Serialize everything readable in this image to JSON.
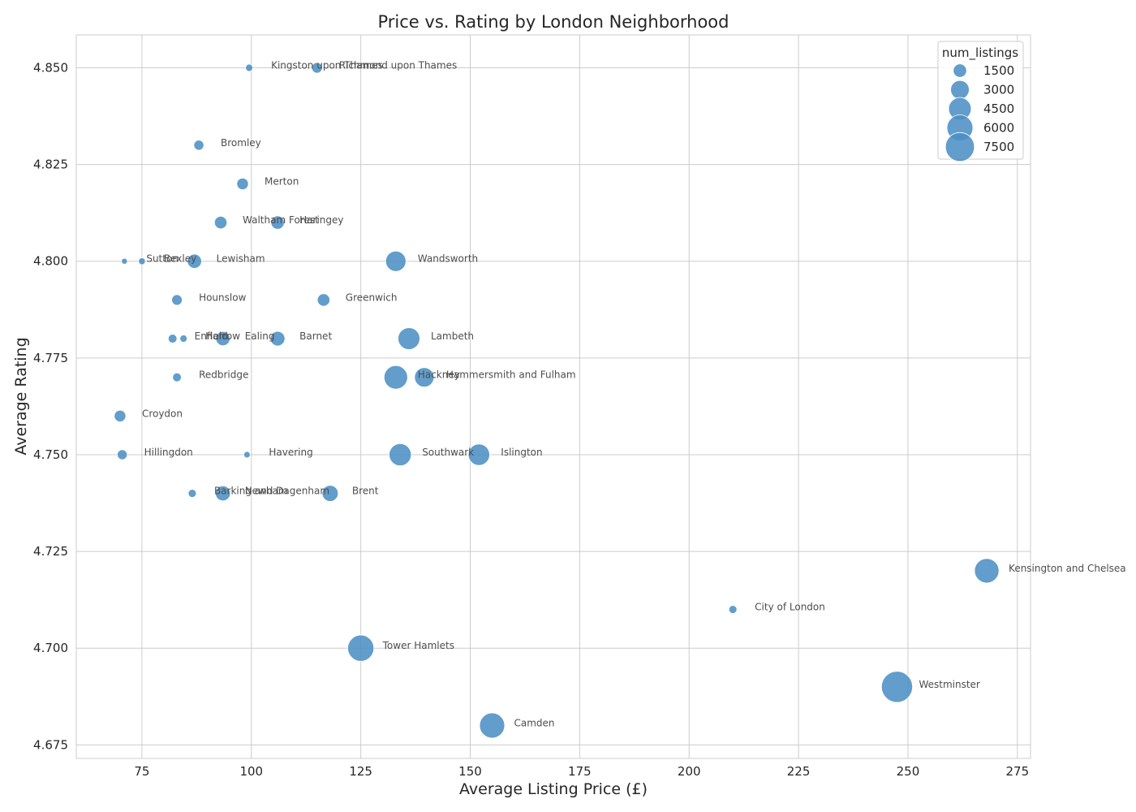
{
  "chart_data": {
    "type": "scatter",
    "title": "Price vs. Rating by London Neighborhood",
    "xlabel": "Average Listing Price (£)",
    "ylabel": "Average Rating",
    "xlim": [
      60,
      278
    ],
    "ylim": [
      4.6715,
      4.8585
    ],
    "xticks": [
      75,
      100,
      125,
      150,
      175,
      200,
      225,
      250,
      275
    ],
    "xtick_labels": [
      "75",
      "100",
      "125",
      "150",
      "175",
      "200",
      "225",
      "250",
      "275"
    ],
    "yticks": [
      4.675,
      4.7,
      4.725,
      4.75,
      4.775,
      4.8,
      4.825,
      4.85
    ],
    "ytick_labels": [
      "4.675",
      "4.700",
      "4.725",
      "4.750",
      "4.775",
      "4.800",
      "4.825",
      "4.850"
    ],
    "grid": true,
    "point_color": "#4c8fc4",
    "size_encoding": "num_listings",
    "legend": {
      "title": "num_listings",
      "placement": "top-right",
      "entries": [
        {
          "label": "1500",
          "value": 1500
        },
        {
          "label": "3000",
          "value": 3000
        },
        {
          "label": "4500",
          "value": 4500
        },
        {
          "label": "6000",
          "value": 6000
        },
        {
          "label": "7500",
          "value": 7500
        }
      ]
    },
    "points": [
      {
        "label": "Kingston upon Thames",
        "x": 99.5,
        "y": 4.85,
        "num_listings": 400
      },
      {
        "label": "Richmond upon Thames",
        "x": 115,
        "y": 4.85,
        "num_listings": 900
      },
      {
        "label": "Bromley",
        "x": 88,
        "y": 4.83,
        "num_listings": 800
      },
      {
        "label": "Merton",
        "x": 98,
        "y": 4.82,
        "num_listings": 1100
      },
      {
        "label": "Waltham Forest",
        "x": 93,
        "y": 4.81,
        "num_listings": 1300
      },
      {
        "label": "Haringey",
        "x": 106,
        "y": 4.81,
        "num_listings": 1500
      },
      {
        "label": "Sutton",
        "x": 71,
        "y": 4.8,
        "num_listings": 250
      },
      {
        "label": "Bexley",
        "x": 75,
        "y": 4.8,
        "num_listings": 350
      },
      {
        "label": "Lewisham",
        "x": 87,
        "y": 4.8,
        "num_listings": 1700
      },
      {
        "label": "Wandsworth",
        "x": 133,
        "y": 4.8,
        "num_listings": 3600
      },
      {
        "label": "Hounslow",
        "x": 83,
        "y": 4.79,
        "num_listings": 900
      },
      {
        "label": "Greenwich",
        "x": 116.5,
        "y": 4.79,
        "num_listings": 1300
      },
      {
        "label": "Enfield",
        "x": 82,
        "y": 4.78,
        "num_listings": 600
      },
      {
        "label": "Harrow",
        "x": 84.5,
        "y": 4.78,
        "num_listings": 400
      },
      {
        "label": "Ealing",
        "x": 93.5,
        "y": 4.78,
        "num_listings": 1700
      },
      {
        "label": "Barnet",
        "x": 106,
        "y": 4.78,
        "num_listings": 1800
      },
      {
        "label": "Lambeth",
        "x": 136,
        "y": 4.78,
        "num_listings": 4200
      },
      {
        "label": "Redbridge",
        "x": 83,
        "y": 4.77,
        "num_listings": 600
      },
      {
        "label": "Hackney",
        "x": 133,
        "y": 4.77,
        "num_listings": 4900
      },
      {
        "label": "Hammersmith and Fulham",
        "x": 139.5,
        "y": 4.77,
        "num_listings": 3300
      },
      {
        "label": "Croydon",
        "x": 70,
        "y": 4.76,
        "num_listings": 1100
      },
      {
        "label": "Hillingdon",
        "x": 70.5,
        "y": 4.75,
        "num_listings": 800
      },
      {
        "label": "Havering",
        "x": 99,
        "y": 4.75,
        "num_listings": 300
      },
      {
        "label": "Southwark",
        "x": 134,
        "y": 4.75,
        "num_listings": 4300
      },
      {
        "label": "Islington",
        "x": 152,
        "y": 4.75,
        "num_listings": 4000
      },
      {
        "label": "Barking and Dagenham",
        "x": 86.5,
        "y": 4.74,
        "num_listings": 500
      },
      {
        "label": "Newham",
        "x": 93.5,
        "y": 4.74,
        "num_listings": 1900
      },
      {
        "label": "Brent",
        "x": 118,
        "y": 4.74,
        "num_listings": 2200
      },
      {
        "label": "Kensington and Chelsea",
        "x": 268,
        "y": 4.72,
        "num_listings": 5300
      },
      {
        "label": "City of London",
        "x": 210,
        "y": 4.71,
        "num_listings": 500
      },
      {
        "label": "Tower Hamlets",
        "x": 125,
        "y": 4.7,
        "num_listings": 6100
      },
      {
        "label": "Westminster",
        "x": 247.5,
        "y": 4.69,
        "num_listings": 8700
      },
      {
        "label": "Camden",
        "x": 155,
        "y": 4.68,
        "num_listings": 5600
      }
    ]
  }
}
